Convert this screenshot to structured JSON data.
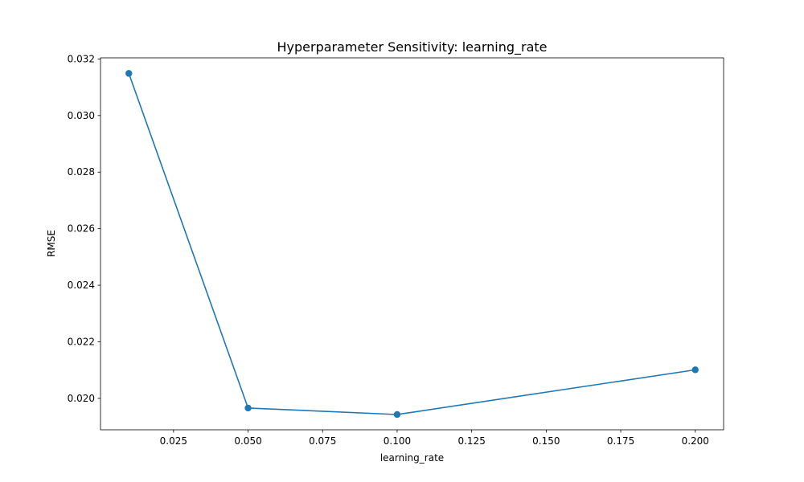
{
  "chart_data": {
    "type": "line",
    "title": "Hyperparameter Sensitivity: learning_rate",
    "xlabel": "learning_rate",
    "ylabel": "RMSE",
    "x": [
      0.01,
      0.05,
      0.1,
      0.2
    ],
    "series": [
      {
        "values": [
          0.03149,
          0.01966,
          0.01943,
          0.02101
        ]
      }
    ],
    "xlim": [
      0.0005,
      0.2095
    ],
    "ylim": [
      0.01889,
      0.03204
    ],
    "xticks": [
      0.025,
      0.05,
      0.075,
      0.1,
      0.125,
      0.15,
      0.175,
      0.2
    ],
    "xtick_labels": [
      "0.025",
      "0.050",
      "0.075",
      "0.100",
      "0.125",
      "0.150",
      "0.175",
      "0.200"
    ],
    "yticks": [
      0.02,
      0.022,
      0.024,
      0.026,
      0.028,
      0.03,
      0.032
    ],
    "ytick_labels": [
      "0.020",
      "0.022",
      "0.024",
      "0.026",
      "0.028",
      "0.030",
      "0.032"
    ],
    "grid": false,
    "marker": "circle",
    "color": "#1f77b4"
  }
}
